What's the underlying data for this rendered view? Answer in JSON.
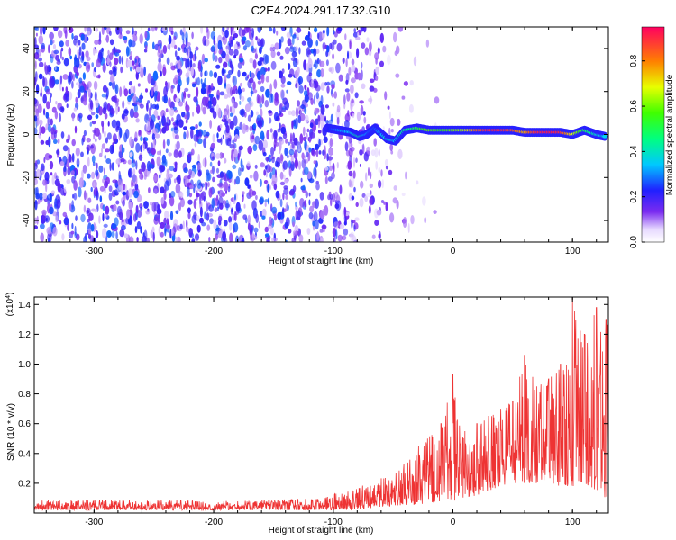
{
  "title": "C2E4.2024.291.17.32.G10",
  "colors": {
    "spectrogram_noise": "#7b2cf0",
    "ridge_low": "#2040ff",
    "ridge_mid": "#20e0e0",
    "ridge_high": "#f02020",
    "snr_line": "#ee3333"
  },
  "chart_data": [
    {
      "type": "heatmap",
      "panel": "top",
      "xlabel": "Height of straight line (km)",
      "ylabel": "Frequency (Hz)",
      "xlim": [
        -350,
        130
      ],
      "ylim": [
        -50,
        50
      ],
      "xticks": [
        -300,
        -200,
        -100,
        0,
        100
      ],
      "yticks": [
        -40,
        -20,
        0,
        20,
        40
      ],
      "colorbar": {
        "label": "Normalized spectral amplitude",
        "range": [
          0.0,
          0.95
        ],
        "ticks": [
          "0.0",
          "0.2",
          "0.4",
          "0.6",
          "0.8"
        ],
        "colormap": "rainbow"
      },
      "ridge": {
        "x": [
          -105,
          -95,
          -85,
          -78,
          -72,
          -65,
          -55,
          -48,
          -40,
          -30,
          -20,
          -10,
          0,
          10,
          20,
          30,
          40,
          50,
          60,
          70,
          80,
          90,
          100,
          110,
          120,
          128
        ],
        "y": [
          3,
          2,
          1,
          -1,
          0,
          3,
          -2,
          -3,
          2,
          3,
          2,
          2,
          2,
          2,
          2,
          2,
          2,
          2,
          1,
          1,
          1,
          1,
          0,
          2,
          0,
          -1
        ],
        "amplitude": [
          0.2,
          0.3,
          0.35,
          0.45,
          0.3,
          0.25,
          0.4,
          0.35,
          0.45,
          0.5,
          0.6,
          0.55,
          0.6,
          0.65,
          0.8,
          0.9,
          0.9,
          0.85,
          0.75,
          0.9,
          0.92,
          0.9,
          0.7,
          0.5,
          0.4,
          0.35
        ]
      },
      "noise": {
        "x_range": [
          -350,
          -40
        ],
        "amplitude": 0.25
      },
      "grid": false
    },
    {
      "type": "line",
      "panel": "bottom",
      "xlabel": "Height of straight line (km)",
      "ylabel": "SNR (10 * v/v)",
      "y_scale_label": "(x10^4)",
      "xlim": [
        -350,
        130
      ],
      "ylim": [
        0,
        1.45
      ],
      "xticks": [
        -300,
        -200,
        -100,
        0,
        100
      ],
      "yticks": [
        0.2,
        0.4,
        0.6,
        0.8,
        1.0,
        1.2,
        1.4
      ],
      "envelope": {
        "x": [
          -350,
          -300,
          -250,
          -200,
          -150,
          -110,
          -90,
          -70,
          -55,
          -40,
          -25,
          -10,
          0,
          10,
          20,
          30,
          40,
          50,
          60,
          70,
          80,
          90,
          100,
          110,
          120,
          128
        ],
        "min": [
          0.02,
          0.02,
          0.02,
          0.02,
          0.02,
          0.02,
          0.02,
          0.03,
          0.04,
          0.05,
          0.06,
          0.08,
          0.08,
          0.1,
          0.12,
          0.15,
          0.18,
          0.2,
          0.2,
          0.2,
          0.2,
          0.18,
          0.18,
          0.2,
          0.15,
          0.1
        ],
        "max": [
          0.09,
          0.09,
          0.09,
          0.08,
          0.09,
          0.1,
          0.15,
          0.2,
          0.25,
          0.35,
          0.5,
          0.6,
          0.93,
          0.55,
          0.6,
          0.65,
          0.7,
          0.75,
          1.06,
          0.85,
          0.9,
          1.0,
          1.45,
          1.2,
          1.38,
          1.3
        ]
      },
      "grid": false
    }
  ]
}
